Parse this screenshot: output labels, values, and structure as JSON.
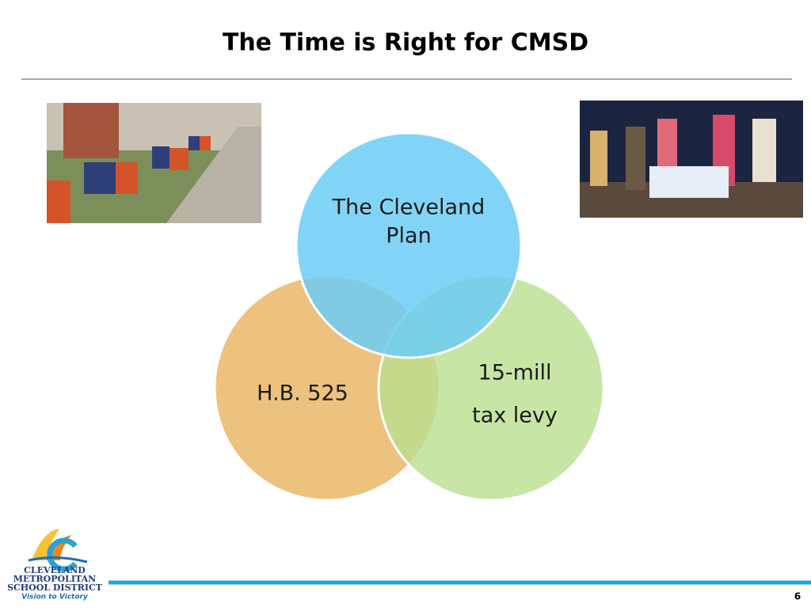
{
  "header": {
    "title": "The Time is Right for CMSD"
  },
  "venn": {
    "circles": [
      {
        "lines": [
          "The Cleveland",
          "Plan"
        ]
      },
      {
        "lines": [
          "H.B. 525"
        ]
      },
      {
        "lines": [
          "15-mill",
          "tax levy"
        ]
      }
    ]
  },
  "logo": {
    "lines": [
      "CLEVELAND",
      "METROPOLITAN",
      "SCHOOL DISTRICT"
    ],
    "tagline": "Vision to Victory"
  },
  "footer": {
    "page_number": "6"
  }
}
